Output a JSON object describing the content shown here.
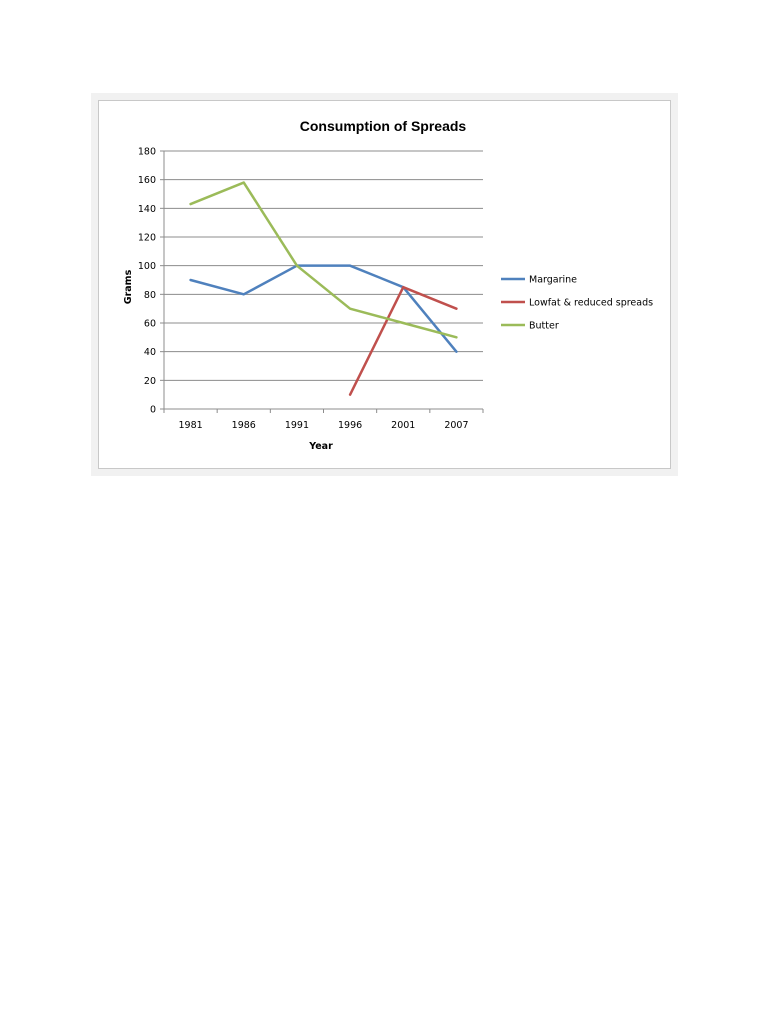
{
  "chart_data": {
    "type": "line",
    "title": "Consumption of Spreads",
    "xlabel": "Year",
    "ylabel": "Grams",
    "categories": [
      "1981",
      "1986",
      "1991",
      "1996",
      "2001",
      "2007"
    ],
    "yticks": [
      "0",
      "20",
      "40",
      "60",
      "80",
      "100",
      "120",
      "140",
      "160",
      "180"
    ],
    "ylim": [
      0,
      180
    ],
    "grid": true,
    "legend_position": "right",
    "series": [
      {
        "name": "Margarine",
        "color": "#4f81bd",
        "values": [
          90,
          80,
          100,
          100,
          85,
          40
        ]
      },
      {
        "name": "Lowfat & reduced spreads",
        "color": "#c0504d",
        "values": [
          null,
          null,
          null,
          10,
          85,
          70
        ]
      },
      {
        "name": "Butter",
        "color": "#9bbb59",
        "values": [
          143,
          158,
          100,
          70,
          60,
          50
        ]
      }
    ]
  }
}
